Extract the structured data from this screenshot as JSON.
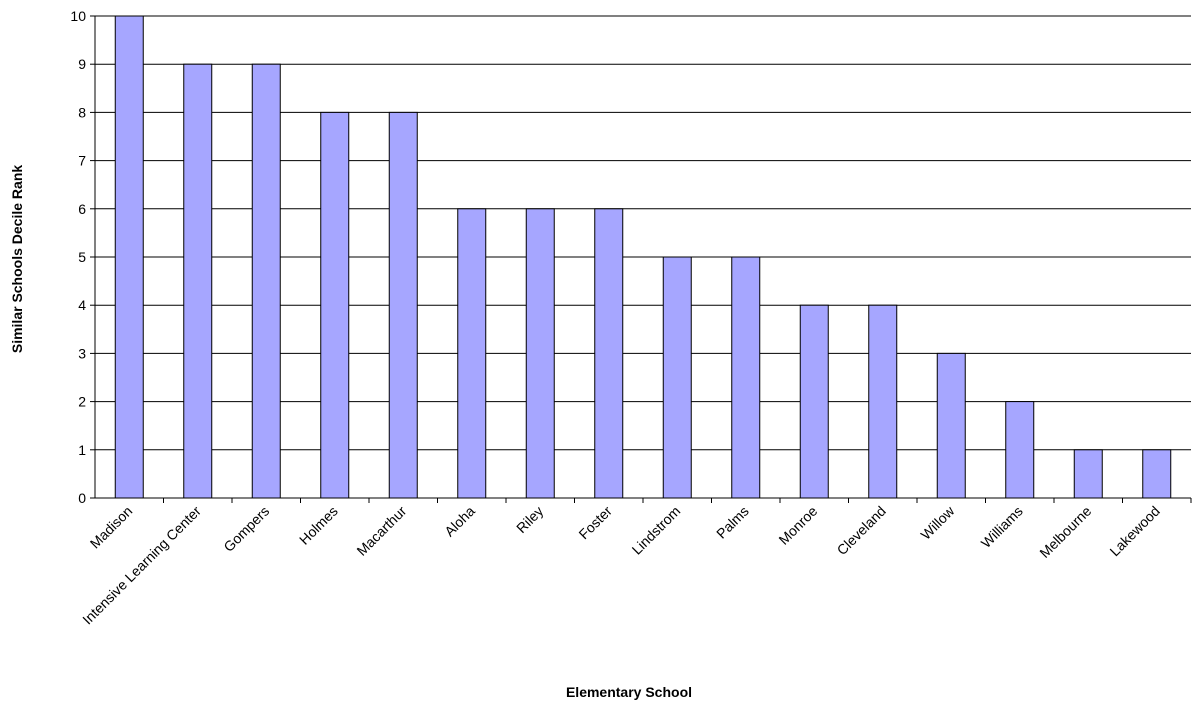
{
  "chart_data": {
    "type": "bar",
    "title": "",
    "xlabel": "Elementary School",
    "ylabel": "Similar Schools Decile Rank",
    "categories": [
      "Madison",
      "Intensive Learning Center",
      "Gompers",
      "Holmes",
      "Macarthur",
      "Aloha",
      "Riley",
      "Foster",
      "Lindstrom",
      "Palms",
      "Monroe",
      "Cleveland",
      "Willow",
      "Williams",
      "Melbourne",
      "Lakewood"
    ],
    "values": [
      10,
      9,
      9,
      8,
      8,
      6,
      6,
      6,
      5,
      5,
      4,
      4,
      3,
      2,
      1,
      1
    ],
    "ylim": [
      0,
      10
    ],
    "yticks": [
      0,
      1,
      2,
      3,
      4,
      5,
      6,
      7,
      8,
      9,
      10
    ],
    "grid": true,
    "legend": "none",
    "colors": {
      "bar_fill": "#A6A6FF",
      "bar_stroke": "#000000",
      "grid": "#000000",
      "background": "#FFFFFF"
    }
  }
}
